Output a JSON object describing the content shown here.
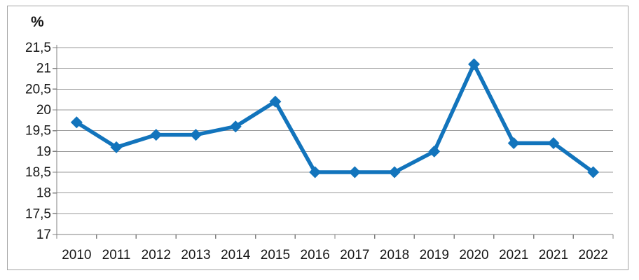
{
  "chart_data": {
    "type": "line",
    "title": "",
    "ylabel": "%",
    "xlabel": "",
    "categories": [
      "2010",
      "2011",
      "2012",
      "2013",
      "2014",
      "2015",
      "2016",
      "2017",
      "2018",
      "2019",
      "2020",
      "2021",
      "2021",
      "2022"
    ],
    "values": [
      19.7,
      19.1,
      19.4,
      19.4,
      19.6,
      20.2,
      18.5,
      18.5,
      18.5,
      19.0,
      21.1,
      19.2,
      19.2,
      18.5
    ],
    "ylim": [
      17,
      21.5
    ],
    "ytick_step": 0.5,
    "yticks": [
      {
        "value": 17,
        "label": "17"
      },
      {
        "value": 17.5,
        "label": "17,5"
      },
      {
        "value": 18,
        "label": "18"
      },
      {
        "value": 18.5,
        "label": "18,5"
      },
      {
        "value": 19,
        "label": "19"
      },
      {
        "value": 19.5,
        "label": "19,5"
      },
      {
        "value": 20,
        "label": "20"
      },
      {
        "value": 20.5,
        "label": "20,5"
      },
      {
        "value": 21,
        "label": "21"
      },
      {
        "value": 21.5,
        "label": "21,5"
      }
    ],
    "grid": true,
    "legend": "none",
    "marker": "diamond",
    "decimal_separator": ",",
    "colors": {
      "line": "#1274BC",
      "marker": "#1274BC",
      "gridline": "#999999",
      "axis": "#808080",
      "text": "#161616",
      "frame_border": "#a3a3a3",
      "background": "#ffffff"
    }
  }
}
